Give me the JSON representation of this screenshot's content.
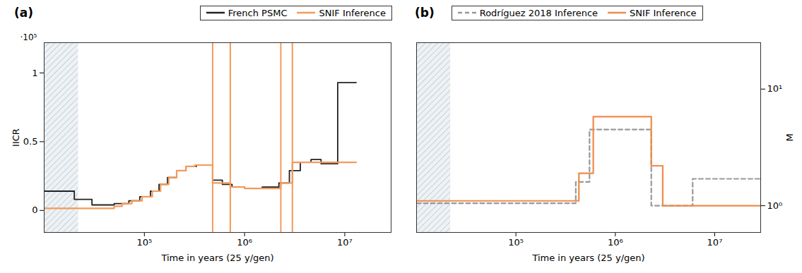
{
  "chart_data": [
    {
      "type": "line",
      "title": "(a)",
      "xlabel": "Time in years (25 y/gen)",
      "ylabel": "IICR",
      "annotations": [
        "·10⁵"
      ],
      "log": "x",
      "legend": "top-right",
      "xlim": [
        10000,
        29000000
      ],
      "xticks": [
        {
          "value": 100000,
          "label": "10⁵"
        },
        {
          "value": 1000000,
          "label": "10⁶"
        },
        {
          "value": 10000000,
          "label": "10⁷"
        }
      ],
      "ylim": [
        -0.16,
        1.22
      ],
      "yticks": [
        0,
        0.5,
        1
      ],
      "hatched_region": [
        10000,
        22000
      ],
      "series": [
        {
          "name": "French PSMC",
          "color": "#222222",
          "line_style": "solid",
          "x": [
            10000,
            20000,
            30000,
            50000,
            70000,
            90000,
            115000,
            140000,
            170000,
            210000,
            260000,
            330000,
            480000,
            600000,
            750000,
            1000000,
            1500000,
            2200000,
            2800000,
            3600000,
            4600000,
            5800000,
            8500000,
            13000000
          ],
          "values": [
            0.14,
            0.08,
            0.04,
            0.05,
            0.07,
            0.1,
            0.14,
            0.19,
            0.24,
            0.29,
            0.32,
            0.33,
            0.22,
            0.19,
            0.17,
            0.16,
            0.17,
            0.2,
            0.29,
            0.35,
            0.37,
            0.34,
            0.93,
            0.93
          ]
        },
        {
          "name": "SNIF Inference",
          "color": "#f39a5b",
          "line_style": "solid",
          "x": [
            10000,
            50000,
            60000,
            75000,
            95000,
            120000,
            145000,
            175000,
            210000,
            260000,
            320000,
            480000,
            720000,
            1000000,
            2300000,
            3000000,
            13000000
          ],
          "values": [
            0.015,
            0.03,
            0.05,
            0.07,
            0.1,
            0.14,
            0.19,
            0.24,
            0.29,
            0.32,
            0.33,
            0.2,
            0.17,
            0.16,
            0.2,
            0.35,
            0.35
          ],
          "vertical_lines": [
            480000,
            720000,
            2300000,
            3000000
          ]
        }
      ]
    },
    {
      "type": "line",
      "title": "(b)",
      "xlabel": "Time in years (25 y/gen)",
      "ylabel": "M",
      "log": true,
      "legend": "top-left",
      "xlim": [
        10000,
        29000000
      ],
      "xticks": [
        {
          "value": 100000,
          "label": "10⁵"
        },
        {
          "value": 1000000,
          "label": "10⁶"
        },
        {
          "value": 10000000,
          "label": "10⁷"
        }
      ],
      "ylim": [
        0.59,
        25
      ],
      "yticks": [
        {
          "value": 1,
          "label": "10⁰"
        },
        {
          "value": 10,
          "label": "10¹"
        }
      ],
      "hatched_region": [
        10000,
        22000
      ],
      "series": [
        {
          "name": "Rodríguez 2018 Inference",
          "color": "#999999",
          "line_style": "dashed",
          "x": [
            10000,
            400000,
            550000,
            2300000,
            6000000,
            29000000
          ],
          "values": [
            1.05,
            1.6,
            4.5,
            1.0,
            1.7,
            1.7
          ]
        },
        {
          "name": "SNIF Inference",
          "color": "#f08a4b",
          "line_style": "solid",
          "x": [
            10000,
            430000,
            600000,
            2300000,
            3000000,
            29000000
          ],
          "values": [
            1.1,
            1.9,
            5.8,
            2.2,
            1.0,
            1.0
          ]
        }
      ]
    }
  ]
}
